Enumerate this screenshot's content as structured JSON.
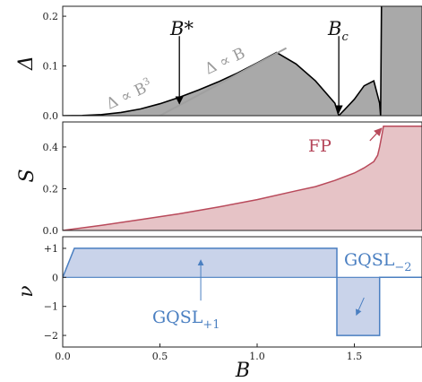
{
  "chart_data": [
    {
      "type": "area",
      "ylabel": "Δ",
      "ylim": [
        0,
        0.22
      ],
      "yticks": [
        0.0,
        0.1,
        0.2
      ],
      "ytick_labels": [
        "0.0",
        "0.1",
        "0.2"
      ],
      "xlim": [
        0,
        1.85
      ],
      "series": [
        {
          "x": [
            0,
            0.1,
            0.2,
            0.3,
            0.4,
            0.5,
            0.6,
            0.7,
            0.8,
            0.9,
            1.0,
            1.1,
            1.2,
            1.3,
            1.4,
            1.42,
            1.45,
            1.5,
            1.55,
            1.6,
            1.63,
            1.635,
            1.64,
            1.85
          ],
          "y": [
            0,
            0.0004,
            0.0022,
            0.0065,
            0.0135,
            0.024,
            0.037,
            0.052,
            0.068,
            0.086,
            0.106,
            0.127,
            0.104,
            0.07,
            0.025,
            0,
            0.012,
            0.033,
            0.06,
            0.07,
            0.025,
            0,
            0.25,
            0.25
          ],
          "fill": "#a9a9a9",
          "line": "#000000"
        }
      ],
      "fit_lines": [
        {
          "x": [
            0.5,
            1.15
          ],
          "y": [
            0.0,
            0.136
          ],
          "color": "#a0a0a0"
        }
      ],
      "annotations": {
        "b_star": "B*",
        "b_c": "B",
        "b_c_sub": "c",
        "cubic_fit": "Δ ∝ B",
        "cubic_exp": "3",
        "linear_fit": "Δ ∝ B"
      },
      "arrows": [
        {
          "from": [
            0.6,
            0.16
          ],
          "to": [
            0.6,
            0.024
          ]
        },
        {
          "from": [
            1.42,
            0.16
          ],
          "to": [
            1.42,
            0.006
          ]
        }
      ]
    },
    {
      "type": "area",
      "ylabel": "S",
      "ylim": [
        0,
        0.52
      ],
      "yticks": [
        0.0,
        0.2,
        0.4
      ],
      "ytick_labels": [
        "0.0",
        "0.2",
        "0.4"
      ],
      "xlim": [
        0,
        1.85
      ],
      "series": [
        {
          "x": [
            0,
            0.2,
            0.4,
            0.6,
            0.8,
            1.0,
            1.2,
            1.3,
            1.4,
            1.5,
            1.55,
            1.6,
            1.62,
            1.63,
            1.64,
            1.65,
            1.85
          ],
          "y": [
            0,
            0.025,
            0.052,
            0.08,
            0.112,
            0.148,
            0.19,
            0.21,
            0.24,
            0.275,
            0.3,
            0.33,
            0.36,
            0.4,
            0.45,
            0.5,
            0.5
          ],
          "fill": "#e6c3c6",
          "line": "#b94a5b"
        }
      ],
      "annotations": {
        "fp": "FP"
      },
      "arrows": [
        {
          "from": [
            1.58,
            0.43
          ],
          "to": [
            1.64,
            0.49
          ]
        }
      ]
    },
    {
      "type": "area",
      "ylabel": "ν",
      "ylim": [
        -2.4,
        1.4
      ],
      "yticks": [
        1,
        0,
        -1,
        -2
      ],
      "ytick_labels": [
        "+1",
        "0",
        "−1",
        "−2"
      ],
      "xlim": [
        0,
        1.85
      ],
      "xticks": [
        0.0,
        0.5,
        1.0,
        1.5
      ],
      "xtick_labels": [
        "0.0",
        "0.5",
        "1.0",
        "1.5"
      ],
      "xlabel": "B",
      "series": [
        {
          "x": [
            0,
            0.06,
            1.41,
            1.41,
            1.41,
            1.41,
            1.63,
            1.63,
            1.85
          ],
          "y": [
            0,
            1,
            1,
            0,
            0,
            -2,
            -2,
            0,
            0
          ],
          "fill": "#c9d3ea",
          "line": "#4a7fc1"
        }
      ],
      "annotations": {
        "gqsl_plus": "GQSL",
        "gqsl_plus_sub": "+1",
        "gqsl_minus": "GQSL",
        "gqsl_minus_sub": "−2"
      },
      "arrows": [
        {
          "from": [
            0.71,
            -0.8
          ],
          "to": [
            0.71,
            0.6
          ]
        },
        {
          "from": [
            1.55,
            -0.7
          ],
          "to": [
            1.51,
            -1.3
          ]
        }
      ]
    }
  ]
}
